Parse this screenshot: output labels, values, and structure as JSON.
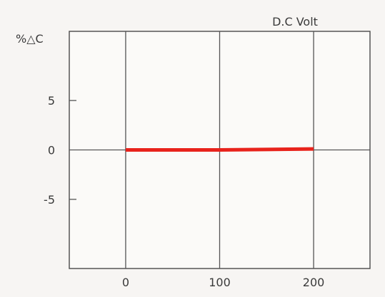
{
  "chart_data": {
    "type": "line",
    "title": "D.C Volt",
    "xlabel": "",
    "ylabel": "%△C",
    "xlim": [
      -60,
      260
    ],
    "ylim": [
      -12,
      12
    ],
    "xticks": [
      0,
      100,
      200
    ],
    "xtick_labels": [
      "0",
      "100",
      "200"
    ],
    "yticks": [
      5,
      0,
      -5
    ],
    "ytick_labels": [
      "5",
      "0",
      "-5"
    ],
    "grid": true,
    "series": [
      {
        "color": "#e8231c",
        "x": [
          0,
          100,
          200
        ],
        "y": [
          0,
          0,
          0.1
        ]
      }
    ]
  }
}
